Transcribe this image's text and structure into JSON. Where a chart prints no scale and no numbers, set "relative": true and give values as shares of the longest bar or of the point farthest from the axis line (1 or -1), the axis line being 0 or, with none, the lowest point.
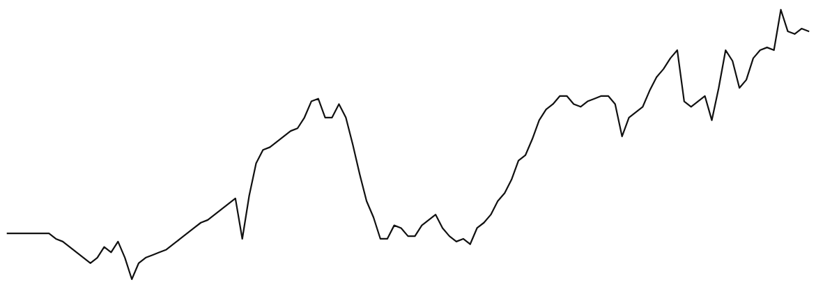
{
  "chart_data": {
    "type": "line",
    "relative": true,
    "grid": false,
    "legend": false,
    "marker": "none",
    "line_style": "solid",
    "categories": [
      null,
      null,
      null,
      null,
      null,
      null,
      null,
      null,
      null,
      null,
      null,
      null,
      null,
      null,
      null,
      null,
      null,
      null,
      null,
      null,
      null,
      null,
      null,
      null,
      null,
      null,
      null,
      null,
      null,
      null,
      null,
      null,
      null,
      null,
      null,
      null,
      null,
      null,
      null,
      null,
      null,
      null,
      null,
      null,
      null,
      null,
      null,
      null,
      null,
      null,
      null,
      null,
      null,
      null,
      null,
      null,
      null,
      null,
      null,
      null,
      null,
      null,
      null,
      null,
      null,
      null,
      null,
      null,
      null,
      null,
      null,
      null,
      null,
      null,
      null,
      null,
      null,
      null,
      null,
      null,
      null,
      null,
      null,
      null,
      null,
      null,
      null,
      null,
      null,
      null,
      null,
      null,
      null,
      null,
      null,
      null,
      null,
      null,
      null,
      null,
      null,
      null,
      null,
      null,
      null,
      null,
      null,
      null,
      null,
      null,
      null,
      null,
      null,
      null,
      null,
      null,
      null
    ],
    "series": [
      {
        "color": "#111111",
        "values": [
          0.17,
          0.17,
          0.17,
          0.17,
          0.17,
          0.17,
          0.17,
          0.15,
          0.14,
          0.12,
          0.1,
          0.08,
          0.06,
          0.08,
          0.12,
          0.1,
          0.14,
          0.08,
          0,
          0.06,
          0.08,
          0.09,
          0.1,
          0.11,
          0.13,
          0.15,
          0.17,
          0.19,
          0.21,
          0.22,
          0.24,
          0.26,
          0.28,
          0.3,
          0.15,
          0.31,
          0.43,
          0.48,
          0.49,
          0.51,
          0.53,
          0.55,
          0.56,
          0.6,
          0.66,
          0.67,
          0.6,
          0.6,
          0.65,
          0.6,
          0.5,
          0.39,
          0.29,
          0.23,
          0.15,
          0.15,
          0.2,
          0.19,
          0.16,
          0.16,
          0.2,
          0.22,
          0.24,
          0.19,
          0.16,
          0.14,
          0.15,
          0.13,
          0.19,
          0.21,
          0.24,
          0.29,
          0.32,
          0.37,
          0.44,
          0.46,
          0.52,
          0.59,
          0.63,
          0.65,
          0.68,
          0.68,
          0.65,
          0.64,
          0.66,
          0.67,
          0.68,
          0.68,
          0.65,
          0.53,
          0.6,
          0.62,
          0.64,
          0.7,
          0.75,
          0.78,
          0.82,
          0.85,
          0.66,
          0.64,
          0.66,
          0.68,
          0.59,
          0.71,
          0.85,
          0.81,
          0.71,
          0.74,
          0.82,
          0.85,
          0.86,
          0.85,
          1,
          0.92,
          0.91,
          0.93,
          0.92
        ]
      }
    ]
  }
}
